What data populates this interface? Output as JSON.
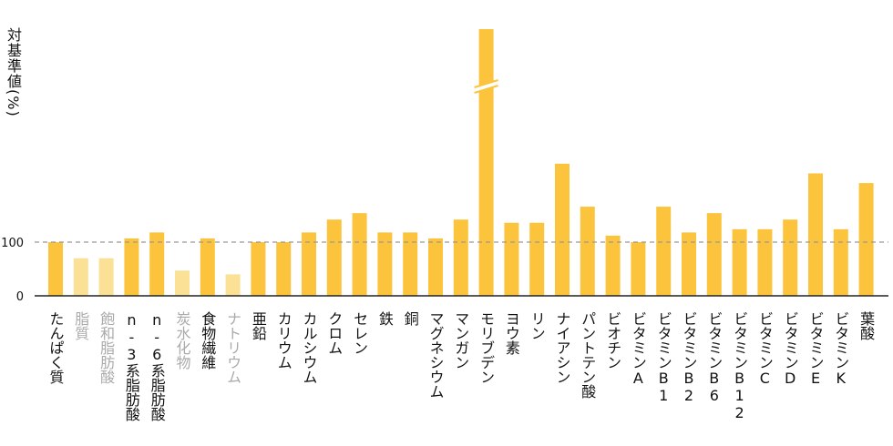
{
  "chart_data": {
    "type": "bar",
    "ylabel": "対基準値(%)",
    "yticks": [
      0,
      100
    ],
    "reference_line": 100,
    "axis_break": true,
    "colors": {
      "main": "#fcc43d",
      "light": "#fbe196",
      "dim_label": "#aaaaaa",
      "ref_line": "#999999"
    },
    "categories": [
      "たんぱく質",
      "脂質",
      "飽和脂肪酸",
      "n-3系脂肪酸",
      "n-6系脂肪酸",
      "炭水化物",
      "食物繊維",
      "ナトリウム",
      "亜鉛",
      "カリウム",
      "カルシウム",
      "クロム",
      "セレン",
      "鉄",
      "銅",
      "マグネシウム",
      "マンガン",
      "モリブデン",
      "ヨウ素",
      "リン",
      "ナイアシン",
      "パントテン酸",
      "ビオチン",
      "ビタミンA",
      "ビタミンB1",
      "ビタミンB2",
      "ビタミンB6",
      "ビタミンB12",
      "ビタミンC",
      "ビタミンD",
      "ビタミンE",
      "ビタミンK",
      "葉酸"
    ],
    "values": [
      100,
      70,
      70,
      107,
      118,
      47,
      107,
      40,
      100,
      100,
      118,
      142,
      154,
      118,
      118,
      107,
      142,
      500,
      136,
      136,
      246,
      166,
      112,
      100,
      166,
      118,
      154,
      124,
      124,
      142,
      228,
      124,
      210
    ],
    "dimmed": [
      false,
      true,
      true,
      false,
      false,
      true,
      false,
      true,
      false,
      false,
      false,
      false,
      false,
      false,
      false,
      false,
      false,
      false,
      false,
      false,
      false,
      false,
      false,
      false,
      false,
      false,
      false,
      false,
      false,
      false,
      false,
      false,
      false
    ]
  }
}
